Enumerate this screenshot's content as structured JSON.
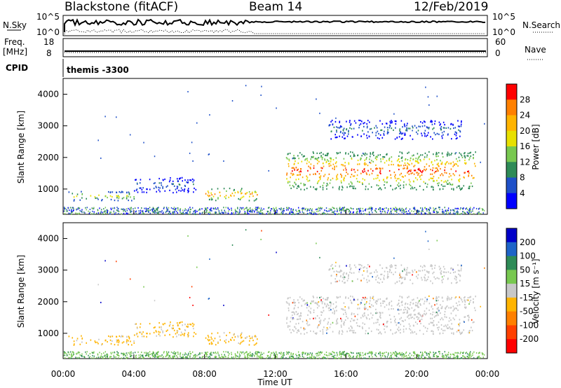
{
  "header": {
    "station": "Blackstone (fitACF)",
    "beam": "Beam 14",
    "date": "12/Feb/2019"
  },
  "summary": {
    "nsky_label": "N.Sky",
    "nsearch_label": "N.Search",
    "nsky_ticks": [
      "10^5",
      "10^0"
    ],
    "nsearch_ticks": [
      "10^5",
      "10^0"
    ],
    "freq_label_top": "Freq.",
    "freq_label_bottom": "[MHz]",
    "freq_ticks": [
      "18",
      "8"
    ],
    "nave_label": "Nave",
    "nave_ticks": [
      "60",
      "0"
    ],
    "cpid_label": "CPID",
    "cpid_value": "themis -3300"
  },
  "chart_data": [
    {
      "type": "heatmap",
      "title": "Power",
      "ylabel": "Slant Range [km]",
      "ylim": [
        200,
        4500
      ],
      "yticks": [
        "4000",
        "3000",
        "2000",
        "1000"
      ],
      "xlim": [
        "00:00",
        "24:00"
      ],
      "colorbar": {
        "label": "Power [dB]",
        "ticks": [
          "28",
          "24",
          "20",
          "16",
          "12",
          "8",
          "4"
        ],
        "colors": [
          "#ff0000",
          "#ff8000",
          "#ffb400",
          "#e8e000",
          "#78c850",
          "#2e8b57",
          "#1e50c8",
          "#0000ff"
        ]
      },
      "bands": [
        {
          "t_start": 0.3,
          "t_end": 4.0,
          "r_low": 650,
          "r_high": 950,
          "level": "low-mid"
        },
        {
          "t_start": 4.0,
          "t_end": 7.5,
          "r_low": 900,
          "r_high": 1400,
          "level": "low"
        },
        {
          "t_start": 8.0,
          "t_end": 11.0,
          "r_low": 650,
          "r_high": 1050,
          "level": "mid"
        },
        {
          "t_start": 12.6,
          "t_end": 23.3,
          "r_low": 1000,
          "r_high": 2200,
          "level": "high"
        },
        {
          "t_start": 15.0,
          "t_end": 22.5,
          "r_low": 2600,
          "r_high": 3200,
          "level": "low"
        }
      ]
    },
    {
      "type": "heatmap",
      "title": "Velocity",
      "ylabel": "Slant Range [km]",
      "ylim": [
        200,
        4500
      ],
      "yticks": [
        "4000",
        "3000",
        "2000",
        "1000"
      ],
      "xlim": [
        "00:00",
        "24:00"
      ],
      "xticks": [
        "00:00",
        "04:00",
        "08:00",
        "12:00",
        "16:00",
        "20:00",
        "00:00"
      ],
      "xlabel": "Time UT",
      "colorbar": {
        "label": "Velocity [m s⁻¹]",
        "ticks": [
          "200",
          "100",
          "50",
          "15",
          "-15",
          "-50",
          "-100",
          "-200"
        ],
        "colors": [
          "#0000c8",
          "#1e64c8",
          "#2e8b57",
          "#78c850",
          "#c8c8c8",
          "#ffb400",
          "#ff8000",
          "#ff4000",
          "#ff0000"
        ]
      }
    }
  ]
}
